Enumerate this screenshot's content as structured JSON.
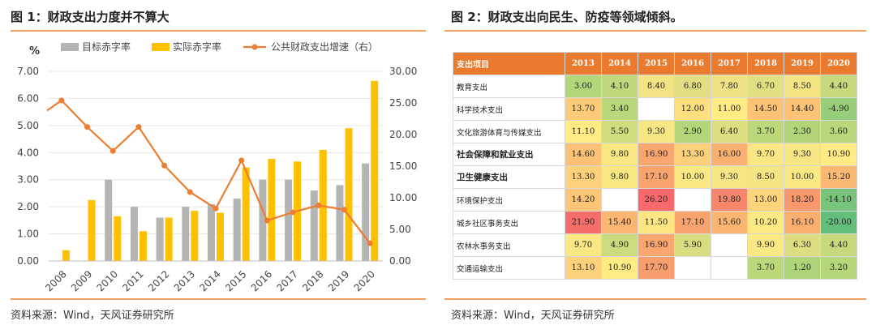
{
  "left": {
    "title": "图 1：财政支出力度并不算大",
    "source": "资料来源：Wind，天风证券研究所"
  },
  "right": {
    "title": "图 2：财政支出向民生、防疫等领域倾斜。",
    "source": "资料来源：Wind，天风证券研究所"
  },
  "colors": {
    "target": "#b4b4b4",
    "actual": "#ffc000",
    "growth": "#ed7d31",
    "rule": "#f0a060",
    "header": "#ea7a2e"
  },
  "chart_data": [
    {
      "type": "bar",
      "left_unit": "%",
      "categories": [
        "2008",
        "2009",
        "2010",
        "2011",
        "2012",
        "2013",
        "2014",
        "2015",
        "2016",
        "2017",
        "2018",
        "2019",
        "2020"
      ],
      "series": [
        {
          "name": "目标赤字率",
          "kind": "bar",
          "axis": "left",
          "values": [
            null,
            null,
            3.0,
            2.0,
            1.6,
            2.0,
            2.1,
            2.3,
            3.0,
            3.0,
            2.6,
            2.8,
            3.6
          ]
        },
        {
          "name": "实际赤字率",
          "kind": "bar",
          "axis": "left",
          "values": [
            0.4,
            2.25,
            1.65,
            1.1,
            1.6,
            1.85,
            1.78,
            3.45,
            3.77,
            3.67,
            4.1,
            4.9,
            6.65
          ]
        },
        {
          "name": "公共财政支出增速（右）",
          "kind": "line",
          "axis": "right",
          "values": [
            25.4,
            21.2,
            17.4,
            21.2,
            15.1,
            10.9,
            8.3,
            15.9,
            6.4,
            7.7,
            8.8,
            8.1,
            2.8
          ]
        }
      ],
      "ylim_left": [
        0,
        7
      ],
      "yticks_left": [
        "0.00",
        "1.00",
        "2.00",
        "3.00",
        "4.00",
        "5.00",
        "6.00",
        "7.00"
      ],
      "ylim_right": [
        0,
        30
      ],
      "yticks_right": [
        "0.00",
        "5.00",
        "10.00",
        "15.00",
        "20.00",
        "25.00",
        "30.00"
      ],
      "legend": "top"
    },
    {
      "type": "heatmap",
      "header": [
        "支出项目",
        "2013",
        "2014",
        "2015",
        "2016",
        "2017",
        "2018",
        "2019",
        "2020"
      ],
      "rows": [
        {
          "label": "教育支出",
          "bold": false,
          "values": [
            "3.00",
            "4.10",
            "8.40",
            "6.80",
            "7.80",
            "6.70",
            "8.50",
            "4.40"
          ]
        },
        {
          "label": "科学技术支出",
          "bold": false,
          "values": [
            "13.70",
            "3.40",
            "",
            "12.00",
            "11.00",
            "14.50",
            "14.40",
            "-4.90"
          ]
        },
        {
          "label": "文化旅游体育与传媒支出",
          "bold": false,
          "values": [
            "11.10",
            "5.50",
            "9.30",
            "2.90",
            "6.40",
            "3.70",
            "2.30",
            "3.60"
          ]
        },
        {
          "label": "社会保障和就业支出",
          "bold": true,
          "values": [
            "14.60",
            "9.80",
            "16.90",
            "13.30",
            "16.00",
            "9.70",
            "9.30",
            "10.90"
          ]
        },
        {
          "label": "卫生健康支出",
          "bold": true,
          "values": [
            "13.30",
            "9.80",
            "17.10",
            "10.00",
            "9.30",
            "8.50",
            "10.00",
            "15.20"
          ]
        },
        {
          "label": "环境保护支出",
          "bold": false,
          "values": [
            "14.20",
            "",
            "26.20",
            "",
            "19.80",
            "13.00",
            "18.20",
            "-14.10"
          ]
        },
        {
          "label": "城乡社区事务支出",
          "bold": false,
          "values": [
            "21.90",
            "15.40",
            "11.50",
            "17.10",
            "15.60",
            "10.20",
            "16.10",
            "-20.00"
          ]
        },
        {
          "label": "农林水事务支出",
          "bold": false,
          "values": [
            "9.70",
            "4.90",
            "16.90",
            "5.90",
            "",
            "9.90",
            "6.30",
            "4.40"
          ]
        },
        {
          "label": "交通运输支出",
          "bold": false,
          "values": [
            "13.10",
            "10.90",
            "17.70",
            "",
            "",
            "3.70",
            "1.20",
            "3.20"
          ]
        }
      ]
    }
  ]
}
